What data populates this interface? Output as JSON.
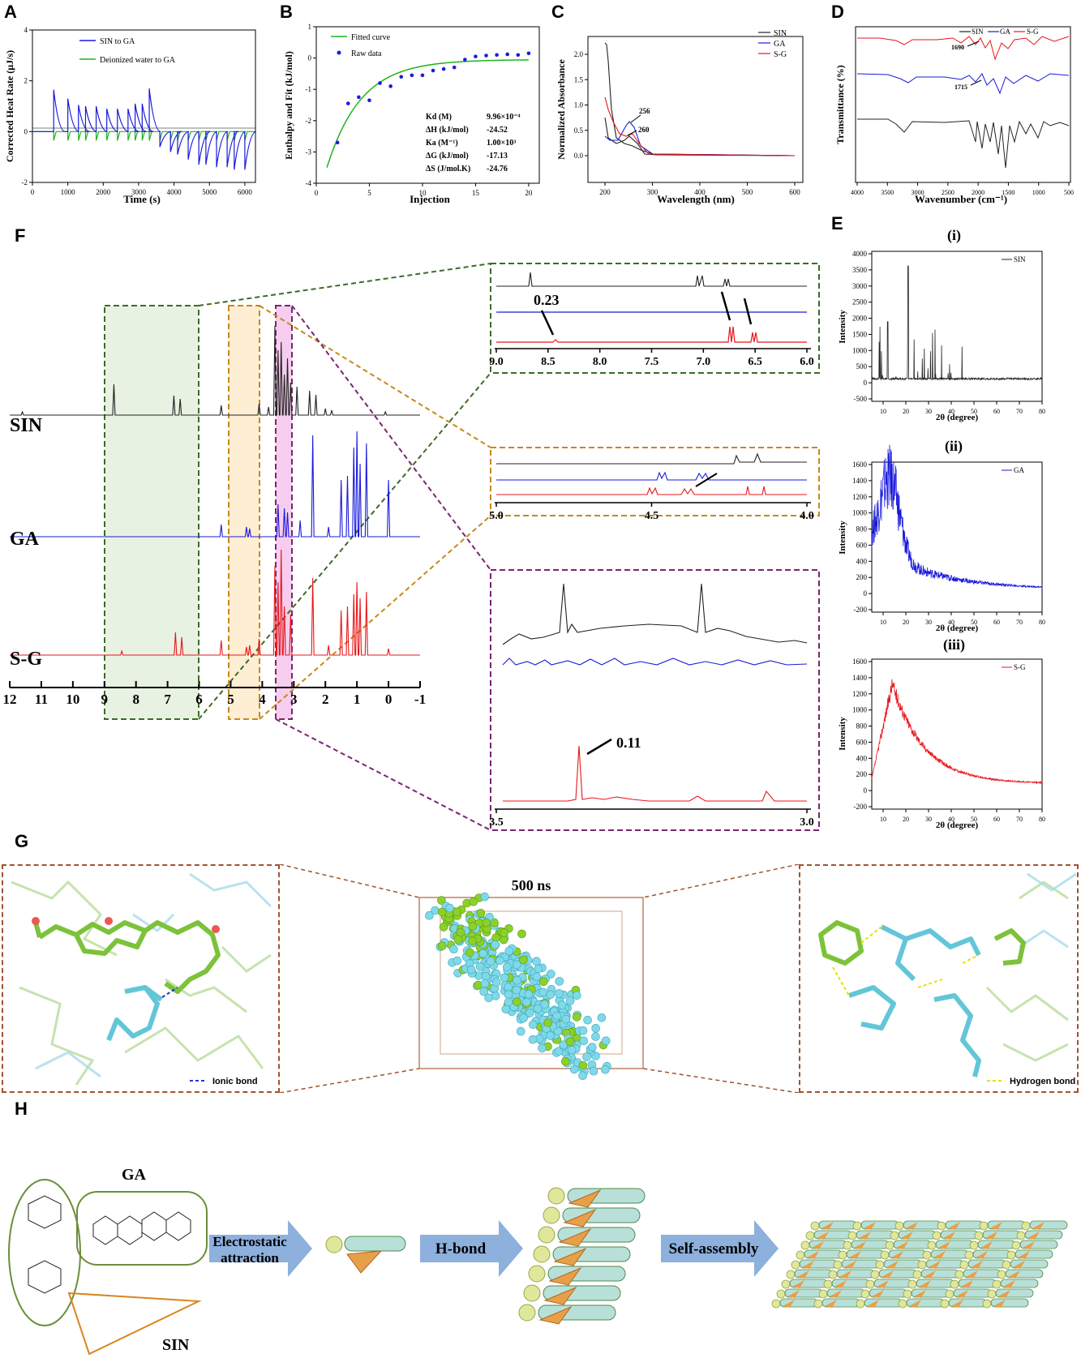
{
  "panels": {
    "A": "A",
    "B": "B",
    "C": "C",
    "D": "D",
    "E": "E",
    "F": "F",
    "G": "G",
    "H": "H"
  },
  "colors": {
    "black": "#222222",
    "blue": "#1a1adc",
    "red": "#e8161b",
    "green": "#1fb31f"
  },
  "chart_data": [
    {
      "id": "A",
      "type": "line",
      "title": "",
      "xlabel": "Time (s)",
      "ylabel": "Corrected Heat Rate (µJ/s)",
      "xlim": [
        0,
        6300
      ],
      "ylim": [
        -2,
        4
      ],
      "xticks": [
        "0",
        "1000",
        "2000",
        "3000",
        "4000",
        "5000",
        "6000"
      ],
      "yticks": [
        "-2",
        "0",
        "2",
        "4"
      ],
      "series": [
        {
          "name": "SIN to GA",
          "color": "#1a1adc",
          "injection_times": [
            600,
            1000,
            1300,
            1500,
            1800,
            2100,
            2400,
            2700,
            2900,
            3100,
            3300,
            3600,
            3900,
            4100,
            4400,
            4700,
            4900,
            5200,
            5500,
            5700,
            6000
          ],
          "peak_values": [
            1.65,
            1.3,
            1.05,
            1.0,
            1.0,
            0.9,
            0.9,
            0.9,
            1.1,
            1.1,
            1.7,
            -0.6,
            -0.8,
            -0.9,
            -1.1,
            -1.3,
            -1.3,
            -1.4,
            -1.4,
            -1.5,
            -1.5
          ]
        },
        {
          "name": "Deionized water to GA",
          "color": "#1fb31f"
        }
      ]
    },
    {
      "id": "B",
      "type": "scatter",
      "xlabel": "Injection",
      "ylabel": "Enthalpy and Fit (kJ/mol)",
      "xlim": [
        0,
        21
      ],
      "ylim": [
        -4,
        1
      ],
      "xticks": [
        "0",
        "5",
        "10",
        "15",
        "20"
      ],
      "yticks": [
        "-4",
        "-3",
        "-2",
        "-1",
        "0",
        "1"
      ],
      "legend": [
        "Fitted curve",
        "Raw data"
      ],
      "raw_x": [
        2,
        3,
        4,
        5,
        6,
        7,
        8,
        9,
        10,
        11,
        12,
        13,
        14,
        15,
        16,
        17,
        18,
        19,
        20
      ],
      "raw_y": [
        -2.7,
        -1.45,
        -1.25,
        -1.35,
        -0.8,
        -0.9,
        -0.6,
        -0.55,
        -0.55,
        -0.4,
        -0.35,
        -0.3,
        -0.05,
        0.05,
        0.08,
        0.1,
        0.12,
        0.1,
        0.15
      ],
      "params": [
        {
          "name": "Kd (M)",
          "value": "9.96×10⁻⁴"
        },
        {
          "name": "ΔH (kJ/mol)",
          "value": "-24.52"
        },
        {
          "name": "Ka (M⁻¹)",
          "value": "1.00×10³"
        },
        {
          "name": "ΔG (kJ/mol)",
          "value": "-17.13"
        },
        {
          "name": "ΔS (J/mol.K)",
          "value": "-24.76"
        }
      ]
    },
    {
      "id": "C",
      "type": "line",
      "xlabel": "Wavelength (nm)",
      "ylabel": "Normalized Absorbance",
      "xlim": [
        150,
        650
      ],
      "ylim": [
        -0.1,
        2.2
      ],
      "xticks": [
        "200",
        "300",
        "400",
        "500",
        "600"
      ],
      "yticks": [
        "0.0",
        "0.5",
        "1.0",
        "1.5",
        "2.0"
      ],
      "legend": [
        "SIN",
        "GA",
        "S-G"
      ],
      "annotations": [
        "256",
        "260"
      ]
    },
    {
      "id": "D",
      "type": "line",
      "xlabel": "Wavenumber (cm⁻¹)",
      "ylabel": "Transmittance (%)",
      "xticks": [
        "4000",
        "3500",
        "3000",
        "2500",
        "2000",
        "1500",
        "1000",
        "500"
      ],
      "legend": [
        "SIN",
        "GA",
        "S-G"
      ],
      "annotations": [
        "1690",
        "1715"
      ]
    },
    {
      "id": "E",
      "type": "line",
      "xlabel": "2θ (degree)",
      "ylabel": "Intensity",
      "xticks": [
        "10",
        "20",
        "30",
        "40",
        "50",
        "60",
        "70",
        "80"
      ],
      "subplots": [
        {
          "label": "(i)",
          "legend": "SIN",
          "yticks": [
            "-500",
            "0",
            "500",
            "1000",
            "1500",
            "2000",
            "2500",
            "3000",
            "3500",
            "4000"
          ],
          "ylim": [
            -500,
            4200
          ]
        },
        {
          "label": "(ii)",
          "legend": "GA",
          "yticks": [
            "-200",
            "0",
            "200",
            "400",
            "600",
            "800",
            "1000",
            "1200",
            "1400",
            "1600"
          ],
          "ylim": [
            -200,
            1650
          ]
        },
        {
          "label": "(iii)",
          "legend": "S-G",
          "yticks": [
            "-200",
            "0",
            "200",
            "400",
            "600",
            "800",
            "1000",
            "1200",
            "1400",
            "1600"
          ],
          "ylim": [
            -200,
            1600
          ]
        }
      ]
    },
    {
      "id": "F",
      "type": "line",
      "xlabel": "",
      "ylabel": "",
      "xticks": [
        "12",
        "11",
        "10",
        "9",
        "8",
        "7",
        "6",
        "5",
        "4",
        "3",
        "2",
        "1",
        "0",
        "-1"
      ],
      "legend": [
        "SIN",
        "GA",
        "S-G"
      ],
      "zooms": [
        {
          "xticks": [
            "9.0",
            "8.5",
            "8.0",
            "7.5",
            "7.0",
            "6.5",
            "6.0"
          ],
          "annotation": "0.23"
        },
        {
          "xticks": [
            "5.0",
            "4.5",
            "4.0"
          ]
        },
        {
          "xticks": [
            "3.5",
            "3.0"
          ],
          "annotation": "0.11"
        }
      ]
    }
  ],
  "G": {
    "time_label": "500 ns",
    "left_legend": "Ionic bond",
    "right_legend": "Hydrogen bond"
  },
  "H": {
    "ga_label": "GA",
    "sin_label": "SIN",
    "arrows": [
      "Electrostatic\nattraction",
      "H-bond",
      "Self-assembly"
    ]
  }
}
